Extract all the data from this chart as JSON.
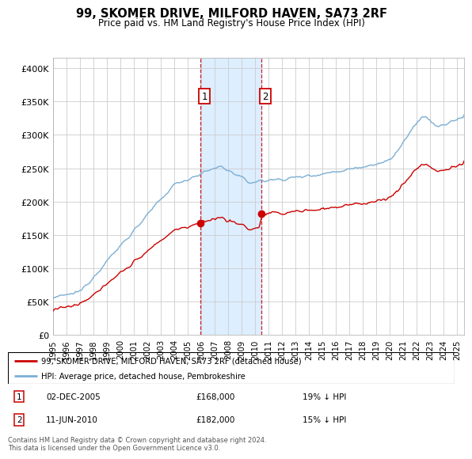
{
  "title": "99, SKOMER DRIVE, MILFORD HAVEN, SA73 2RF",
  "subtitle": "Price paid vs. HM Land Registry's House Price Index (HPI)",
  "ylabel_ticks": [
    "£0",
    "£50K",
    "£100K",
    "£150K",
    "£200K",
    "£250K",
    "£300K",
    "£350K",
    "£400K"
  ],
  "ytick_values": [
    0,
    50000,
    100000,
    150000,
    200000,
    250000,
    300000,
    350000,
    400000
  ],
  "ylim": [
    0,
    415000
  ],
  "xlim_start": 1995.0,
  "xlim_end": 2025.5,
  "sale1_x": 2005.92,
  "sale1_y": 168000,
  "sale1_label": "1",
  "sale1_date": "02-DEC-2005",
  "sale1_price": "£168,000",
  "sale1_note": "19% ↓ HPI",
  "sale2_x": 2010.44,
  "sale2_y": 182000,
  "sale2_label": "2",
  "sale2_date": "11-JUN-2010",
  "sale2_price": "£182,000",
  "sale2_note": "15% ↓ HPI",
  "shade_x_start": 2005.92,
  "shade_x_end": 2010.44,
  "legend_line1": "99, SKOMER DRIVE, MILFORD HAVEN, SA73 2RF (detached house)",
  "legend_line2": "HPI: Average price, detached house, Pembrokeshire",
  "footer": "Contains HM Land Registry data © Crown copyright and database right 2024.\nThis data is licensed under the Open Government Licence v3.0.",
  "hpi_color": "#7bafd4",
  "sale_color": "#cc0000",
  "shade_color": "#ddeeff",
  "background_color": "#ffffff",
  "grid_color": "#cccccc"
}
